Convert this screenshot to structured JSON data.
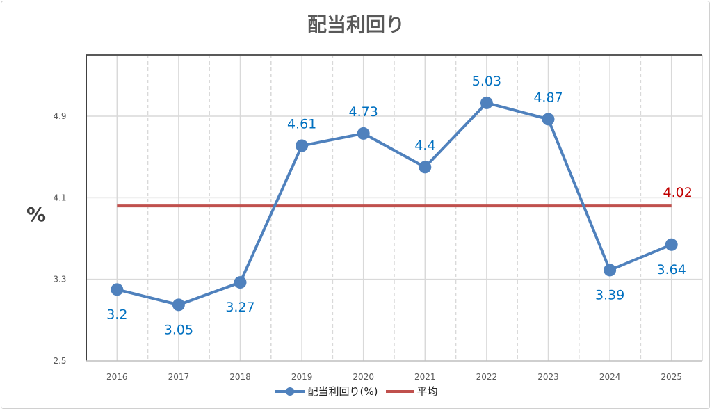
{
  "chart_data": {
    "type": "line",
    "title": "配当利回り",
    "ylabel": "%",
    "xlabel": "",
    "categories": [
      "2016",
      "2017",
      "2018",
      "2019",
      "2020",
      "2021",
      "2022",
      "2023",
      "2024",
      "2025"
    ],
    "series": [
      {
        "name": "配当利回り(%)",
        "values": [
          3.2,
          3.05,
          3.27,
          4.61,
          4.73,
          4.4,
          5.03,
          4.87,
          3.39,
          3.64
        ],
        "color": "#4f81bd",
        "label_color": "#0070c0"
      },
      {
        "name": "平均",
        "values": [
          4.02,
          4.02,
          4.02,
          4.02,
          4.02,
          4.02,
          4.02,
          4.02,
          4.02,
          4.02
        ],
        "color": "#c0504d",
        "label": "4.02",
        "label_color": "#c00000"
      }
    ],
    "ylim": [
      2.5,
      5.5
    ],
    "yticks": [
      "2.5",
      "3.3",
      "4.1",
      "4.9"
    ],
    "grid": true,
    "legend": "bottom"
  }
}
